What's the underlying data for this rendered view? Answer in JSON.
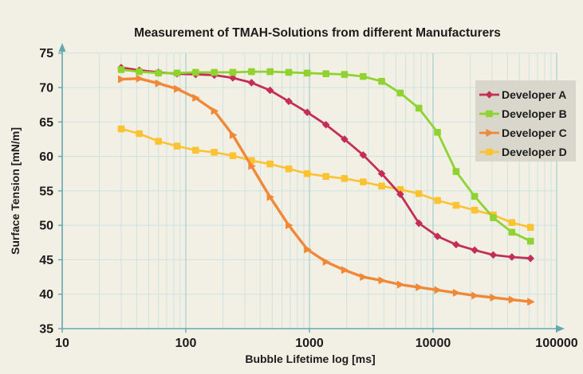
{
  "chart_data": {
    "type": "line",
    "title": "Measurement of TMAH-Solutions from different Manufacturers",
    "xlabel": "Bubble Lifetime log [ms]",
    "ylabel": "Surface Tension [mN/m]",
    "x_scale": "log",
    "xlim": [
      10,
      100000
    ],
    "ylim": [
      35,
      75
    ],
    "x_ticks": [
      10,
      100,
      1000,
      10000,
      100000
    ],
    "y_ticks": [
      35,
      40,
      45,
      50,
      55,
      60,
      65,
      70,
      75
    ],
    "grid": true,
    "legend_position": "upper right",
    "x": [
      30,
      42,
      60,
      85,
      120,
      170,
      240,
      340,
      480,
      680,
      960,
      1360,
      1920,
      2720,
      3840,
      5430,
      7680,
      10860,
      15360,
      21700,
      30700,
      43400,
      61400
    ],
    "series": [
      {
        "name": "Developer A",
        "color": "#C42E56",
        "marker": "diamond",
        "values": [
          72.9,
          72.5,
          72.2,
          72.0,
          71.9,
          71.8,
          71.4,
          70.7,
          69.6,
          68.0,
          66.4,
          64.6,
          62.5,
          60.2,
          57.5,
          54.5,
          50.3,
          48.4,
          47.2,
          46.4,
          45.7,
          45.4,
          45.2
        ]
      },
      {
        "name": "Developer B",
        "color": "#90D230",
        "marker": "square",
        "values": [
          72.6,
          72.3,
          72.1,
          72.1,
          72.2,
          72.2,
          72.2,
          72.3,
          72.3,
          72.2,
          72.1,
          72.0,
          71.9,
          71.6,
          70.9,
          69.2,
          67.0,
          63.5,
          57.8,
          54.2,
          51.1,
          49.0,
          47.7
        ]
      },
      {
        "name": "Developer C",
        "color": "#F08837",
        "marker": "triangle",
        "values": [
          71.2,
          71.3,
          70.6,
          69.8,
          68.5,
          66.6,
          63.1,
          58.6,
          54.1,
          50.0,
          46.5,
          44.7,
          43.5,
          42.5,
          42.0,
          41.4,
          41.0,
          40.6,
          40.2,
          39.8,
          39.5,
          39.2,
          38.9
        ]
      },
      {
        "name": "Developer D",
        "color": "#FBC232",
        "marker": "square",
        "values": [
          64.0,
          63.3,
          62.2,
          61.5,
          60.9,
          60.6,
          60.1,
          59.4,
          58.9,
          58.2,
          57.5,
          57.1,
          56.8,
          56.3,
          55.7,
          55.2,
          54.6,
          53.6,
          52.9,
          52.2,
          51.5,
          50.4,
          49.7
        ]
      }
    ],
    "colors": {
      "background": "#F2F0E5",
      "grid_minor": "#CDE3E1",
      "grid_major": "#A6CECD",
      "axis": "#63A8AE",
      "legend_background": "#D9D7CC",
      "text": "#1C1C1C"
    }
  }
}
